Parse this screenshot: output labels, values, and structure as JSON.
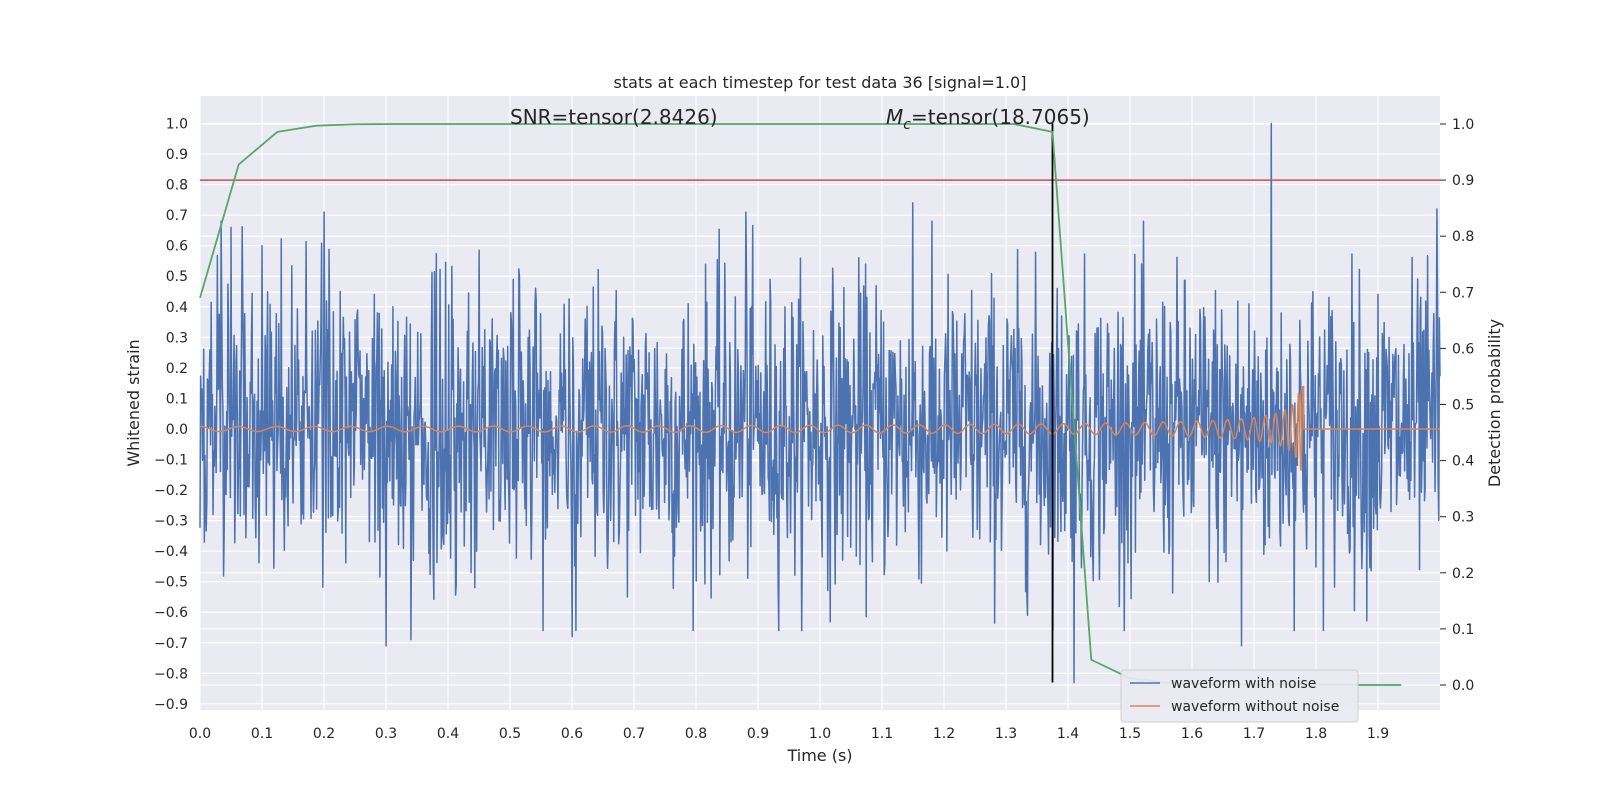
{
  "chart_data": {
    "type": "line",
    "title": "stats at each timestep for test data 36 [signal=1.0]",
    "xlabel": "Time (s)",
    "ylabel_left": "Whitened strain",
    "ylabel_right": "Detection probability",
    "xlim": [
      0.0,
      2.0
    ],
    "ylim_left": [
      -0.92,
      1.09
    ],
    "ylim_right": [
      0.0,
      1.0
    ],
    "x_ticks": [
      "0.0",
      "0.1",
      "0.2",
      "0.3",
      "0.4",
      "0.5",
      "0.6",
      "0.7",
      "0.8",
      "0.9",
      "1.0",
      "1.1",
      "1.2",
      "1.3",
      "1.4",
      "1.5",
      "1.6",
      "1.7",
      "1.8",
      "1.9"
    ],
    "y_left_ticks": [
      "1.0",
      "0.9",
      "0.8",
      "0.7",
      "0.6",
      "0.5",
      "0.4",
      "0.3",
      "0.2",
      "0.1",
      "0.0",
      "−0.1",
      "−0.2",
      "−0.3",
      "−0.4",
      "−0.5",
      "−0.6",
      "−0.7",
      "−0.8",
      "−0.9"
    ],
    "y_right_ticks": [
      "1.0",
      "0.9",
      "0.8",
      "0.7",
      "0.6",
      "0.5",
      "0.4",
      "0.3",
      "0.2",
      "0.1",
      "0.0"
    ],
    "grid": true,
    "legend_position": "lower-right",
    "annotations": [
      {
        "text": "SNR=tensor(2.8426)",
        "x": 0.5,
        "y": 1.02
      },
      {
        "text_main": "M",
        "text_sub": "c",
        "text_rest": "=tensor(18.7065)",
        "x": 1.1,
        "y": 1.02
      }
    ],
    "threshold_line": {
      "y_right": 0.9,
      "color": "#c44e52"
    },
    "vertical_line": {
      "x": 1.375,
      "y_left_range": [
        -0.83,
        1.0
      ],
      "color": "#000000"
    },
    "series": [
      {
        "name": "waveform with noise",
        "color": "#4c72b0",
        "noise_model": {
          "samples": 2000,
          "sigma": 0.24,
          "seed": 36
        },
        "spikes": [
          {
            "x": 0.05,
            "y": 0.66
          },
          {
            "x": 0.1,
            "y": 0.6
          },
          {
            "x": 0.2,
            "y": 0.71
          },
          {
            "x": 0.3,
            "y": -0.71
          },
          {
            "x": 0.34,
            "y": -0.69
          },
          {
            "x": 0.6,
            "y": -0.68
          },
          {
            "x": 0.88,
            "y": 0.71
          },
          {
            "x": 1.15,
            "y": 0.74
          },
          {
            "x": 1.41,
            "y": -0.83
          },
          {
            "x": 1.68,
            "y": -0.71
          },
          {
            "x": 1.728,
            "y": 1.0
          },
          {
            "x": 1.995,
            "y": 0.72
          }
        ]
      },
      {
        "name": "waveform without noise",
        "color": "#dd8452",
        "chirp_model": {
          "t_merge": 1.78,
          "amp_base": 0.008,
          "amp_peak": 0.14,
          "f0": 16,
          "tau0": 1.78
        }
      }
    ],
    "detection_probability": {
      "name": "",
      "color": "#55a868",
      "x": [
        0.0,
        0.0625,
        0.125,
        0.1875,
        0.25,
        0.3125,
        0.375,
        0.4375,
        0.5,
        0.5625,
        0.625,
        0.6875,
        0.75,
        0.8125,
        0.875,
        0.9375,
        1.0,
        1.0625,
        1.125,
        1.1875,
        1.25,
        1.3125,
        1.375,
        1.4375,
        1.5,
        1.5625,
        1.625,
        1.6875,
        1.75,
        1.8125,
        1.875,
        1.9375
      ],
      "y": [
        0.69,
        0.928,
        0.986,
        0.997,
        0.9995,
        1.0,
        1.0,
        1.0,
        1.0,
        1.0,
        1.0,
        1.0,
        1.0,
        1.0,
        1.0,
        1.0,
        1.0,
        1.0,
        1.0,
        1.0,
        1.0,
        1.0,
        0.986,
        0.045,
        0.012,
        0.004,
        0.002,
        0.001,
        0.001,
        0.001,
        0.0,
        0.0
      ]
    }
  }
}
